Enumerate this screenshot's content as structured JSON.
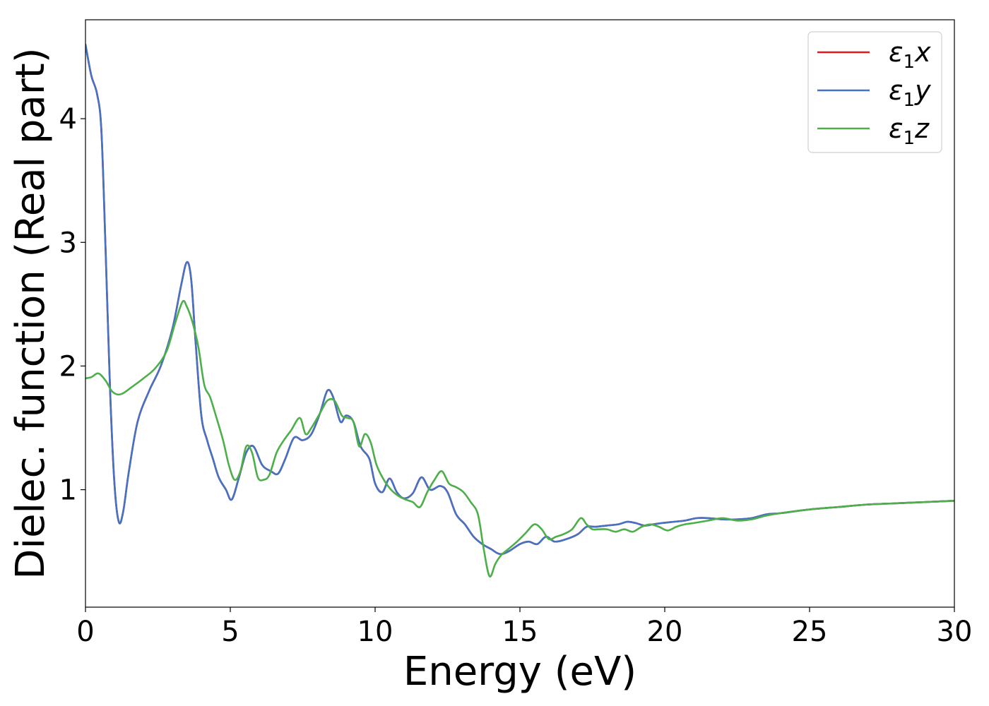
{
  "chart_data": {
    "type": "line",
    "xlabel": "Energy (eV)",
    "ylabel": "Dielec. function (Real part)",
    "xlim": [
      0,
      30
    ],
    "ylim": [
      0.05,
      4.8
    ],
    "xticks": [
      0,
      5,
      10,
      15,
      20,
      25,
      30
    ],
    "yticks": [
      1,
      2,
      3,
      4
    ],
    "grid": false,
    "legend_position": "top-right",
    "series": [
      {
        "name": "ε₁x",
        "legend_main": "ε",
        "legend_sub": "1",
        "legend_suffix": "x",
        "color": "#e41a1c",
        "x": [
          0,
          0.2,
          0.4,
          0.55,
          0.7,
          0.85,
          1.0,
          1.15,
          1.3,
          1.5,
          1.8,
          2.2,
          2.6,
          3.0,
          3.3,
          3.5,
          3.65,
          3.8,
          4.0,
          4.2,
          4.4,
          4.6,
          4.85,
          5.05,
          5.3,
          5.55,
          5.8,
          6.1,
          6.4,
          6.65,
          6.9,
          7.2,
          7.5,
          7.8,
          8.1,
          8.35,
          8.55,
          8.8,
          9.0,
          9.25,
          9.5,
          9.8,
          10.0,
          10.25,
          10.5,
          10.75,
          11.0,
          11.3,
          11.6,
          11.9,
          12.25,
          12.5,
          12.8,
          13.1,
          13.4,
          13.7,
          14.0,
          14.3,
          14.6,
          15.0,
          15.3,
          15.6,
          15.9,
          16.2,
          16.6,
          17.0,
          17.3,
          17.6,
          18.0,
          18.4,
          18.7,
          19.0,
          19.3,
          19.6,
          19.9,
          20.3,
          20.7,
          21.1,
          21.5,
          22.0,
          22.5,
          23.0,
          23.5,
          24.0,
          25.0,
          26.0,
          27.0,
          28.0,
          29.0,
          30.0
        ],
        "values": [
          4.6,
          4.35,
          4.2,
          3.9,
          2.9,
          1.8,
          1.05,
          0.74,
          0.82,
          1.15,
          1.55,
          1.8,
          2.0,
          2.3,
          2.65,
          2.84,
          2.7,
          2.2,
          1.6,
          1.4,
          1.25,
          1.1,
          1.0,
          0.92,
          1.1,
          1.3,
          1.35,
          1.2,
          1.15,
          1.13,
          1.25,
          1.42,
          1.4,
          1.45,
          1.62,
          1.8,
          1.75,
          1.55,
          1.6,
          1.55,
          1.35,
          1.25,
          1.05,
          0.98,
          1.09,
          0.98,
          0.93,
          0.97,
          1.1,
          1.0,
          1.03,
          0.98,
          0.8,
          0.72,
          0.62,
          0.56,
          0.52,
          0.48,
          0.5,
          0.56,
          0.58,
          0.56,
          0.62,
          0.58,
          0.6,
          0.64,
          0.7,
          0.7,
          0.71,
          0.72,
          0.74,
          0.73,
          0.71,
          0.72,
          0.73,
          0.74,
          0.75,
          0.77,
          0.77,
          0.76,
          0.76,
          0.77,
          0.8,
          0.81,
          0.84,
          0.86,
          0.88,
          0.89,
          0.9,
          0.91
        ]
      },
      {
        "name": "ε₁y",
        "legend_main": "ε",
        "legend_sub": "1",
        "legend_suffix": "y",
        "color": "#4472c4",
        "x": [
          0,
          0.2,
          0.4,
          0.55,
          0.7,
          0.85,
          1.0,
          1.15,
          1.3,
          1.5,
          1.8,
          2.2,
          2.6,
          3.0,
          3.3,
          3.5,
          3.65,
          3.8,
          4.0,
          4.2,
          4.4,
          4.6,
          4.85,
          5.05,
          5.3,
          5.55,
          5.8,
          6.1,
          6.4,
          6.65,
          6.9,
          7.2,
          7.5,
          7.8,
          8.1,
          8.35,
          8.55,
          8.8,
          9.0,
          9.25,
          9.5,
          9.8,
          10.0,
          10.25,
          10.5,
          10.75,
          11.0,
          11.3,
          11.6,
          11.9,
          12.25,
          12.5,
          12.8,
          13.1,
          13.4,
          13.7,
          14.0,
          14.3,
          14.6,
          15.0,
          15.3,
          15.6,
          15.9,
          16.2,
          16.6,
          17.0,
          17.3,
          17.6,
          18.0,
          18.4,
          18.7,
          19.0,
          19.3,
          19.6,
          19.9,
          20.3,
          20.7,
          21.1,
          21.5,
          22.0,
          22.5,
          23.0,
          23.5,
          24.0,
          25.0,
          26.0,
          27.0,
          28.0,
          29.0,
          30.0
        ],
        "values": [
          4.6,
          4.35,
          4.2,
          3.9,
          2.9,
          1.8,
          1.05,
          0.74,
          0.82,
          1.15,
          1.55,
          1.8,
          2.0,
          2.3,
          2.65,
          2.84,
          2.7,
          2.2,
          1.6,
          1.4,
          1.25,
          1.1,
          1.0,
          0.92,
          1.1,
          1.3,
          1.35,
          1.2,
          1.15,
          1.13,
          1.25,
          1.42,
          1.4,
          1.45,
          1.62,
          1.8,
          1.75,
          1.55,
          1.6,
          1.55,
          1.35,
          1.25,
          1.05,
          0.98,
          1.09,
          0.98,
          0.93,
          0.97,
          1.1,
          1.0,
          1.03,
          0.98,
          0.8,
          0.72,
          0.62,
          0.56,
          0.52,
          0.48,
          0.5,
          0.56,
          0.58,
          0.56,
          0.62,
          0.58,
          0.6,
          0.64,
          0.7,
          0.7,
          0.71,
          0.72,
          0.74,
          0.73,
          0.71,
          0.72,
          0.73,
          0.74,
          0.75,
          0.77,
          0.77,
          0.76,
          0.76,
          0.77,
          0.8,
          0.81,
          0.84,
          0.86,
          0.88,
          0.89,
          0.9,
          0.91
        ]
      },
      {
        "name": "ε₁z",
        "legend_main": "ε",
        "legend_sub": "1",
        "legend_suffix": "z",
        "color": "#4daf4a",
        "x": [
          0,
          0.2,
          0.45,
          0.7,
          0.9,
          1.1,
          1.3,
          1.6,
          2.0,
          2.4,
          2.8,
          3.1,
          3.35,
          3.5,
          3.7,
          3.9,
          4.1,
          4.3,
          4.5,
          4.75,
          4.95,
          5.15,
          5.35,
          5.55,
          5.75,
          5.95,
          6.15,
          6.35,
          6.6,
          6.85,
          7.1,
          7.4,
          7.6,
          7.8,
          8.1,
          8.35,
          8.6,
          8.85,
          9.05,
          9.25,
          9.45,
          9.65,
          9.85,
          10.05,
          10.3,
          10.55,
          10.8,
          11.05,
          11.3,
          11.55,
          11.8,
          12.05,
          12.3,
          12.55,
          12.8,
          13.05,
          13.3,
          13.55,
          13.75,
          13.95,
          14.15,
          14.35,
          14.6,
          14.9,
          15.2,
          15.5,
          15.75,
          16.0,
          16.25,
          16.5,
          16.8,
          17.1,
          17.3,
          17.5,
          17.7,
          18.0,
          18.3,
          18.6,
          18.9,
          19.2,
          19.5,
          19.8,
          20.1,
          20.4,
          20.7,
          21.0,
          21.5,
          22.0,
          22.5,
          23.0,
          23.5,
          24.0,
          25.0,
          26.0,
          27.0,
          28.0,
          29.0,
          30.0
        ],
        "values": [
          1.9,
          1.91,
          1.94,
          1.88,
          1.8,
          1.77,
          1.78,
          1.83,
          1.9,
          1.98,
          2.12,
          2.35,
          2.52,
          2.48,
          2.35,
          2.15,
          1.85,
          1.75,
          1.6,
          1.4,
          1.2,
          1.08,
          1.15,
          1.35,
          1.3,
          1.1,
          1.08,
          1.12,
          1.3,
          1.4,
          1.48,
          1.58,
          1.45,
          1.5,
          1.62,
          1.72,
          1.72,
          1.6,
          1.58,
          1.55,
          1.35,
          1.45,
          1.38,
          1.2,
          1.08,
          1.0,
          0.95,
          0.92,
          0.9,
          0.86,
          0.98,
          1.08,
          1.15,
          1.05,
          1.02,
          0.98,
          0.9,
          0.8,
          0.52,
          0.3,
          0.4,
          0.47,
          0.52,
          0.58,
          0.65,
          0.72,
          0.68,
          0.6,
          0.62,
          0.64,
          0.68,
          0.77,
          0.72,
          0.68,
          0.68,
          0.68,
          0.66,
          0.68,
          0.66,
          0.7,
          0.72,
          0.7,
          0.67,
          0.7,
          0.72,
          0.73,
          0.75,
          0.77,
          0.75,
          0.76,
          0.79,
          0.81,
          0.84,
          0.86,
          0.88,
          0.89,
          0.9,
          0.91
        ]
      }
    ]
  }
}
